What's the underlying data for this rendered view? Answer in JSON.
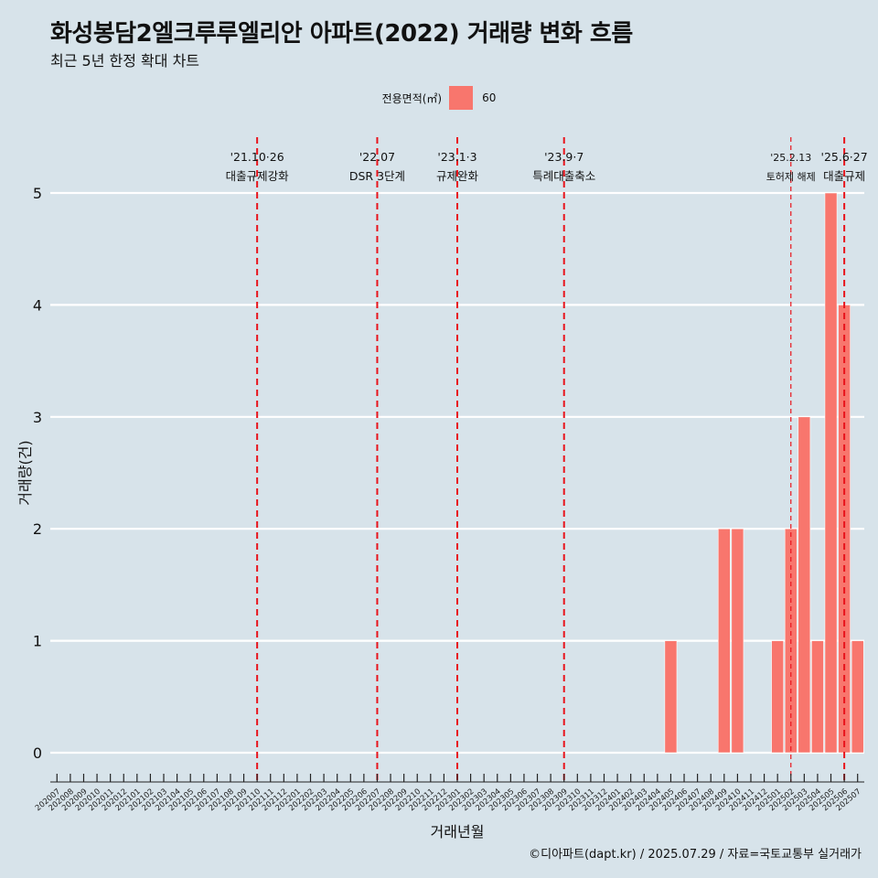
{
  "title": "화성봉담2엘크루루엘리안 아파트(2022) 거래량 변화 흐름",
  "subtitle": "최근 5년 한정 확대 차트",
  "legend": {
    "title": "전용면적(㎡)",
    "label": "60",
    "color": "#f8766d"
  },
  "caption": "©디아파트(dapt.kr) / 2025.07.29 / 자료=국토교통부 실거래가",
  "chart_data": {
    "type": "bar",
    "xlabel": "거래년월",
    "ylabel": "거래량(건)",
    "ylim": [
      0,
      5
    ],
    "yticks": [
      0,
      1,
      2,
      3,
      4,
      5
    ],
    "grid": true,
    "legend_position": "top",
    "categories": [
      "202007",
      "202008",
      "202009",
      "202010",
      "202011",
      "202012",
      "202101",
      "202102",
      "202103",
      "202104",
      "202105",
      "202106",
      "202107",
      "202108",
      "202109",
      "202110",
      "202111",
      "202112",
      "202201",
      "202202",
      "202203",
      "202204",
      "202205",
      "202206",
      "202207",
      "202208",
      "202209",
      "202210",
      "202211",
      "202212",
      "202301",
      "202302",
      "202303",
      "202304",
      "202305",
      "202306",
      "202307",
      "202308",
      "202309",
      "202310",
      "202311",
      "202312",
      "202401",
      "202402",
      "202403",
      "202404",
      "202405",
      "202406",
      "202407",
      "202408",
      "202409",
      "202410",
      "202411",
      "202412",
      "202501",
      "202502",
      "202503",
      "202504",
      "202505",
      "202506",
      "202507"
    ],
    "series": [
      {
        "name": "60",
        "color": "#f8766d",
        "values": [
          0,
          0,
          0,
          0,
          0,
          0,
          0,
          0,
          0,
          0,
          0,
          0,
          0,
          0,
          0,
          0,
          0,
          0,
          0,
          0,
          0,
          0,
          0,
          0,
          0,
          0,
          0,
          0,
          0,
          0,
          0,
          0,
          0,
          0,
          0,
          0,
          0,
          0,
          0,
          0,
          0,
          0,
          0,
          0,
          0,
          0,
          1,
          0,
          0,
          0,
          2,
          2,
          0,
          0,
          1,
          2,
          3,
          1,
          5,
          4,
          1
        ]
      }
    ],
    "events": [
      {
        "month": "202110",
        "date": "'21.10·26",
        "label": "대출규제강화",
        "style": "bold"
      },
      {
        "month": "202207",
        "date": "'22.07",
        "label": "DSR 3단계",
        "style": "bold"
      },
      {
        "month": "202301",
        "date": "'23.1·3",
        "label": "규제완화",
        "style": "bold"
      },
      {
        "month": "202309",
        "date": "'23.9·7",
        "label": "특례대출축소",
        "style": "bold"
      },
      {
        "month": "202502",
        "date": "'25.2.13",
        "label": "토허제 해제",
        "style": "thin"
      },
      {
        "month": "202506",
        "date": "'25.6·27",
        "label": "대출규제",
        "style": "bold"
      }
    ]
  }
}
